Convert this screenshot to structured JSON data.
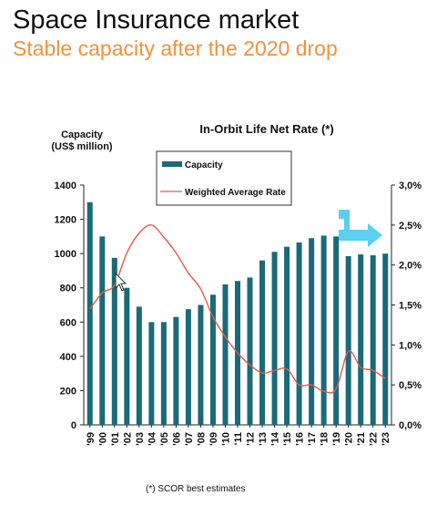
{
  "slide": {
    "title": "Space Insurance market",
    "subtitle": "Stable capacity after the 2020 drop"
  },
  "footnote": "(*) SCOR best estimates",
  "colors": {
    "bar": "#1a6a78",
    "line": "#e05c4a",
    "subtitle": "#f0923a",
    "arrow": "#3ec5f0"
  },
  "icons": {
    "pointer": "mouse-cursor-icon",
    "annotation": "cyan-bent-arrow-icon"
  },
  "chart_data": {
    "type": "bar",
    "title": "In-Orbit Life Net Rate (*)",
    "ylabel_lines": [
      "Capacity",
      "(US$ million)"
    ],
    "categories": [
      "'99",
      "'00",
      "'01",
      "'02",
      "'03",
      "'04",
      "'05",
      "'06",
      "'07",
      "'08",
      "'09",
      "'10",
      "'11",
      "'12",
      "'13",
      "'14",
      "'15",
      "'16",
      "'17",
      "'18",
      "'19",
      "'20",
      "'21",
      "'22",
      "'23"
    ],
    "series": [
      {
        "name": "Capacity",
        "axis": "left",
        "kind": "bar",
        "values": [
          1300,
          1100,
          975,
          800,
          690,
          600,
          600,
          630,
          675,
          700,
          760,
          820,
          840,
          860,
          960,
          1010,
          1040,
          1065,
          1090,
          1105,
          1100,
          985,
          995,
          990,
          1000
        ]
      },
      {
        "name": "Weighted Average Rate",
        "axis": "right",
        "kind": "line",
        "values": [
          1.45,
          1.65,
          1.75,
          2.15,
          2.4,
          2.5,
          2.35,
          2.15,
          1.9,
          1.7,
          1.35,
          1.1,
          0.9,
          0.75,
          0.65,
          0.68,
          0.7,
          0.5,
          0.5,
          0.42,
          0.45,
          0.92,
          0.72,
          0.68,
          0.58
        ]
      }
    ],
    "yleft": {
      "min": 0,
      "max": 1400,
      "ticks": [
        "0",
        "200",
        "400",
        "600",
        "800",
        "1000",
        "1200",
        "1400"
      ]
    },
    "yright": {
      "min": 0,
      "max": 3.0,
      "ticks": [
        "0,0%",
        "0,5%",
        "1,0%",
        "1,5%",
        "2,0%",
        "2,5%",
        "3,0%"
      ]
    },
    "legend": {
      "placement": "top-left",
      "entries": [
        "Capacity",
        "Weighted Average Rate"
      ]
    },
    "grid": false
  }
}
